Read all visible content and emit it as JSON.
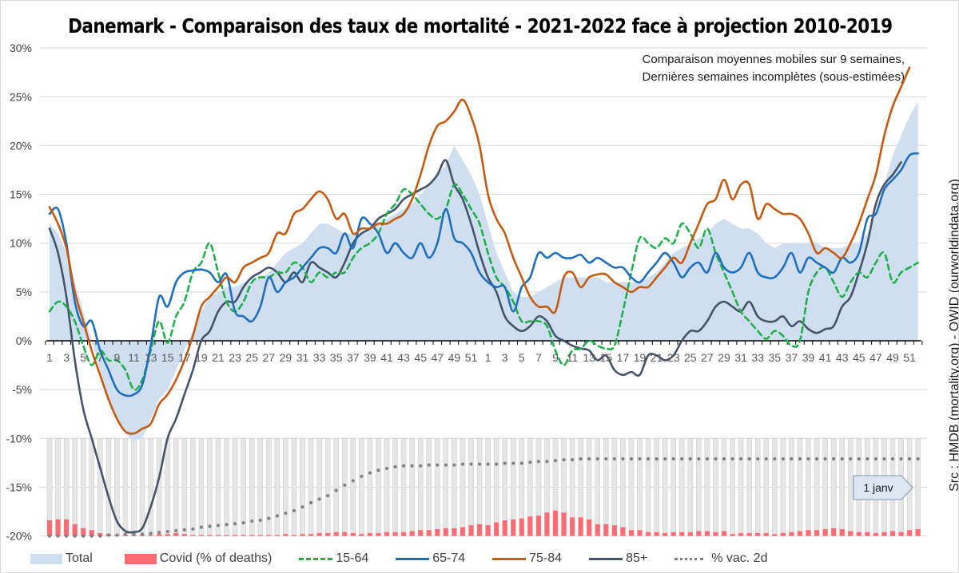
{
  "title": "Danemark - Comparaison des taux de mortalité - 2021-2022 face à projection 2010-2019",
  "subtitle_lines": [
    "Comparaison moyennes mobiles sur 9 semaines,",
    "Dernières semaines incomplètes (sous-estimées)"
  ],
  "source": "Src : HMDB (mortality.org) - OWID (ourworldindata.org)",
  "annotation": "1 janv",
  "legend": [
    {
      "key": "total",
      "label": "Total"
    },
    {
      "key": "covid",
      "label": "Covid (% of deaths)"
    },
    {
      "key": "a1564",
      "label": "15-64"
    },
    {
      "key": "a6574",
      "label": "65-74"
    },
    {
      "key": "a7584",
      "label": "75-84"
    },
    {
      "key": "a85",
      "label": "85+"
    },
    {
      "key": "vac",
      "label": "% vac. 2d"
    }
  ],
  "colors": {
    "total": "#cfdff0",
    "covid": "#ff6b73",
    "a1564": "#1fb04a",
    "a6574": "#1f6fbf",
    "a7584": "#c55a11",
    "a85": "#44546a",
    "vac": "#808080",
    "bar_bg": "#e6e6e6"
  },
  "chart_data": {
    "type": "line",
    "title": "Danemark - Comparaison des taux de mortalité - 2021-2022 face à projection 2010-2019",
    "xlabel": "",
    "ylabel": "",
    "ylim": [
      -20,
      30
    ],
    "yticks": [
      "30%",
      "25%",
      "20%",
      "15%",
      "10%",
      "5%",
      "0%",
      "-5%",
      "-10%",
      "-15%",
      "-20%"
    ],
    "ytick_values": [
      30,
      25,
      20,
      15,
      10,
      5,
      0,
      -5,
      -10,
      -15,
      -20
    ],
    "xtick_labels": [
      "1",
      "3",
      "5",
      "7",
      "9",
      "11",
      "13",
      "15",
      "17",
      "19",
      "21",
      "23",
      "25",
      "27",
      "29",
      "31",
      "33",
      "35",
      "37",
      "39",
      "41",
      "43",
      "45",
      "47",
      "49",
      "51",
      "1",
      "3",
      "5",
      "7",
      "9",
      "11",
      "13",
      "15",
      "17",
      "19",
      "21",
      "23",
      "25",
      "27",
      "29",
      "31",
      "33",
      "35",
      "37",
      "39",
      "41",
      "43",
      "45",
      "47",
      "49",
      "51"
    ],
    "x_weeks_count": 104,
    "grid": true,
    "legend_position": "bottom",
    "series": [
      {
        "name": "Total",
        "key": "total",
        "type": "area",
        "values": [
          12,
          11,
          9,
          6,
          3,
          0,
          -3,
          -6,
          -8,
          -9.5,
          -10.3,
          -10,
          -8,
          -6,
          -5,
          -3,
          -1,
          1,
          3,
          4.5,
          5,
          5.5,
          5.5,
          6,
          6,
          6.5,
          7,
          8,
          9,
          9.5,
          10,
          11,
          12,
          12,
          11.5,
          11,
          11,
          11,
          11.5,
          12,
          12.5,
          13,
          13.5,
          14,
          15,
          16,
          17,
          18,
          20,
          18.5,
          17,
          15,
          12,
          9,
          7,
          5,
          4.5,
          4.5,
          5,
          5.5,
          6,
          6.5,
          6.5,
          6.5,
          6.5,
          6.5,
          6,
          6,
          6,
          6,
          6,
          6.5,
          7,
          8,
          9,
          9.5,
          10,
          10.5,
          11,
          12,
          12.5,
          12,
          11.5,
          11.5,
          11,
          10,
          9.5,
          10,
          10,
          10,
          10,
          10,
          9.5,
          9.5,
          9.5,
          10,
          10,
          11,
          13,
          16,
          19,
          21,
          23,
          24.5
        ]
      },
      {
        "name": "Covid (% of deaths)",
        "key": "covid",
        "type": "bar",
        "values": [
          16,
          17,
          17,
          12,
          8,
          6,
          3,
          2,
          1,
          1,
          1,
          1,
          1,
          2,
          2,
          3,
          2,
          1,
          1,
          1,
          1,
          1,
          1,
          1,
          1,
          1,
          1,
          1,
          2,
          1,
          2,
          2,
          3,
          3,
          4,
          4,
          3,
          2,
          3,
          3,
          4,
          4,
          4,
          5,
          6,
          6,
          7,
          8,
          8,
          9,
          11,
          12,
          11,
          14,
          16,
          17,
          18,
          20,
          21,
          24,
          26,
          24,
          19,
          19,
          17,
          12,
          12,
          11,
          9,
          6,
          6,
          4,
          4,
          3,
          4,
          4,
          4,
          5,
          5,
          4,
          5,
          2,
          3,
          3,
          3,
          3,
          2,
          3,
          4,
          5,
          6,
          6,
          7,
          8,
          7,
          5,
          4,
          4,
          3,
          4,
          5,
          4,
          6,
          7
        ]
      },
      {
        "name": "15-64",
        "key": "a1564",
        "type": "line",
        "values": [
          3,
          4,
          3.5,
          2,
          -0.5,
          -2.5,
          -1,
          -2,
          -2,
          -3,
          -5,
          -4,
          -1,
          2,
          -0.2,
          2.5,
          4,
          7,
          8,
          10,
          7,
          4,
          3,
          4,
          6,
          6.5,
          6.5,
          7,
          7,
          8,
          7.5,
          6,
          7,
          6.5,
          7,
          7,
          8.5,
          9.5,
          10,
          11,
          13,
          14,
          15.5,
          15,
          14,
          13,
          12.5,
          13.5,
          16,
          15,
          13.5,
          12,
          9,
          6.5,
          5.5,
          4,
          2,
          2,
          2,
          1.5,
          -1,
          -2.5,
          -1,
          -0.8,
          0,
          -0.5,
          -0.8,
          -0.5,
          3,
          7,
          10.5,
          10,
          9.5,
          10.5,
          10,
          12,
          11,
          9.5,
          11.5,
          9,
          7,
          5,
          3,
          2,
          1,
          0.2,
          1,
          0.5,
          -0.5,
          0,
          5,
          7,
          7.5,
          6,
          4.5,
          6,
          7,
          6.5,
          8,
          9,
          6,
          7,
          7.5,
          8
        ]
      },
      {
        "name": "65-74",
        "key": "a6574",
        "type": "line",
        "values": [
          13,
          13.5,
          10,
          4,
          1.5,
          2,
          -1,
          -3,
          -5,
          -5.6,
          -5.5,
          -4.5,
          -0.5,
          4.5,
          3.5,
          6,
          7,
          7.2,
          7.3,
          7,
          6,
          6.8,
          3,
          2.5,
          2,
          3.5,
          6.5,
          5,
          6,
          6.5,
          7.5,
          8.5,
          9.5,
          9.5,
          9,
          11,
          9.5,
          12.5,
          12,
          11,
          9,
          10,
          9,
          8.5,
          10,
          8.5,
          10,
          13.5,
          10.5,
          10,
          9,
          7,
          6,
          5.5,
          5.5,
          3,
          5.5,
          6.5,
          9,
          8.5,
          9,
          8.5,
          8.5,
          8.8,
          8,
          8.5,
          8,
          7.5,
          7.5,
          6.5,
          6,
          7,
          8,
          9,
          8,
          6.5,
          7.5,
          8,
          7,
          9,
          7.5,
          7,
          7.5,
          9,
          7,
          6.5,
          6.5,
          7.5,
          9,
          7,
          8.5,
          8,
          7.5,
          7,
          8.5,
          8,
          9,
          12.5,
          13,
          15.5,
          16.5,
          17.5,
          19,
          19.2
        ]
      },
      {
        "name": "75-84",
        "key": "a7584",
        "type": "line",
        "values": [
          13.7,
          12,
          9.5,
          5,
          2,
          -1,
          -3.5,
          -6,
          -8,
          -9.3,
          -9.5,
          -9,
          -8.5,
          -6.5,
          -5.5,
          -4,
          -2,
          0.5,
          3.5,
          4.5,
          5.5,
          6.5,
          6,
          7.5,
          8,
          8.5,
          9,
          11,
          11,
          13,
          13.5,
          14.5,
          15.3,
          14.5,
          12.5,
          13,
          11,
          11.5,
          11.5,
          12,
          12,
          12.5,
          13,
          14.5,
          17,
          20,
          22,
          22.5,
          23.5,
          24.7,
          23,
          20,
          15,
          12.5,
          11,
          8.5,
          6.5,
          4.5,
          3.5,
          3.5,
          3,
          6.5,
          7,
          5.5,
          6.5,
          6.8,
          6.8,
          6,
          5.5,
          5,
          5.5,
          5.5,
          6.5,
          7.5,
          8.5,
          8,
          10,
          12,
          14,
          14.5,
          16.5,
          14.5,
          16,
          16,
          12.5,
          14,
          13.5,
          13,
          13,
          12.5,
          11,
          9,
          9.5,
          9,
          8.5,
          10,
          12,
          14.5,
          17,
          21,
          24,
          26,
          28
        ]
      },
      {
        "name": "85+",
        "key": "a85",
        "type": "line",
        "values": [
          11.5,
          9,
          4.5,
          -2,
          -7,
          -10,
          -13,
          -16,
          -18.5,
          -19.5,
          -19.6,
          -19.2,
          -17,
          -14,
          -10,
          -8,
          -5.5,
          -3,
          0,
          1,
          3,
          4,
          4,
          5.5,
          6.5,
          7,
          7.5,
          7,
          6,
          7,
          6,
          8,
          7.5,
          7,
          6.5,
          8,
          10,
          11,
          11.5,
          12.5,
          13,
          13.5,
          14.5,
          15,
          15.5,
          16,
          17,
          18.5,
          16,
          14.5,
          12,
          9,
          6.5,
          5,
          2.5,
          1.5,
          1,
          1.5,
          2.5,
          2,
          0.5,
          0,
          -0.5,
          -0.8,
          -1,
          -2,
          -1.5,
          -3,
          -3.5,
          -3.2,
          -3.5,
          -1.5,
          -1.5,
          -2,
          -1.5,
          0,
          1,
          1,
          2,
          3.5,
          4,
          3.5,
          3,
          4,
          2.5,
          2,
          2,
          2.5,
          1.5,
          2,
          1.2,
          0.8,
          1.2,
          1.5,
          3.5,
          4.5,
          7,
          10,
          14,
          16,
          17,
          18.3
        ]
      },
      {
        "name": "% vac. 2d",
        "key": "vac",
        "type": "dots",
        "values": [
          0,
          0,
          0,
          0,
          0,
          0,
          0,
          1,
          1,
          2,
          2,
          2,
          3,
          4,
          5,
          6,
          7,
          8,
          10,
          11,
          12,
          13,
          14,
          15,
          17,
          18,
          20,
          23,
          26,
          29,
          33,
          38,
          42,
          46,
          52,
          58,
          63,
          68,
          72,
          75,
          77,
          79,
          80,
          80,
          80,
          81,
          81,
          81,
          81,
          82,
          82,
          82,
          82,
          82,
          83,
          83,
          83,
          84,
          85,
          85,
          86,
          87,
          87,
          88,
          88,
          88,
          88,
          88,
          88,
          88,
          88,
          88,
          88,
          88,
          88,
          88,
          88,
          88,
          88,
          88,
          88,
          88,
          88,
          88,
          88,
          88,
          88,
          88,
          88,
          88,
          88,
          88,
          88,
          88,
          88,
          88,
          88,
          88,
          88,
          88,
          88,
          88,
          88,
          88
        ]
      }
    ]
  }
}
